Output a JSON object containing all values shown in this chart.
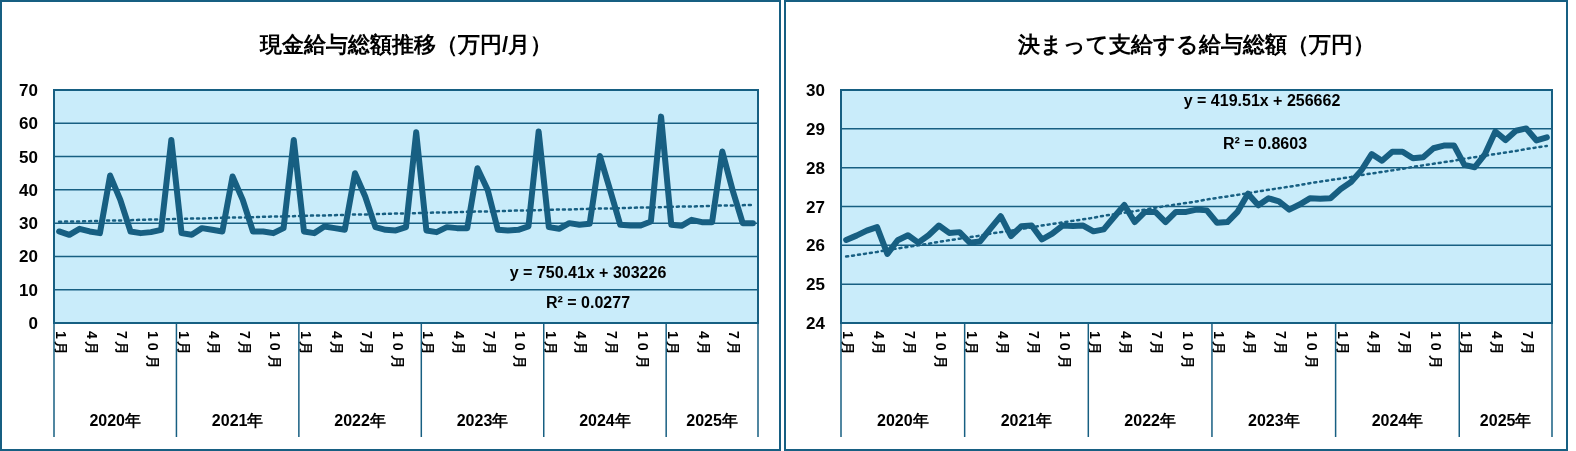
{
  "chart_data": [
    {
      "type": "line",
      "title": "現金給与総額推移（万円/月）",
      "categories": [
        "1月",
        null,
        null,
        "4月",
        null,
        null,
        "7月",
        null,
        null,
        "10月",
        null,
        null,
        "1月",
        null,
        null,
        "4月",
        null,
        null,
        "7月",
        null,
        null,
        "10月",
        null,
        null,
        "1月",
        null,
        null,
        "4月",
        null,
        null,
        "7月",
        null,
        null,
        "10月",
        null,
        null,
        "1月",
        null,
        null,
        "4月",
        null,
        null,
        "7月",
        null,
        null,
        "10月",
        null,
        null,
        "1月",
        null,
        null,
        "4月",
        null,
        null,
        "7月",
        null,
        null,
        "10月",
        null,
        null,
        "1月",
        null,
        null,
        "4月",
        null,
        null,
        "7月",
        null,
        null
      ],
      "ylim": [
        0,
        70
      ],
      "yticks": [
        0,
        10,
        20,
        30,
        40,
        50,
        60,
        70
      ],
      "grid": "y",
      "annotations": [
        "y = 750.41x + 303226",
        "R² = 0.0277",
        "2020年",
        "2021年",
        "2022年",
        "2023年",
        "2024年",
        "2025年"
      ],
      "series": [
        {
          "color": "#175f82",
          "line_style": "solid",
          "values": [
            27.5,
            26.5,
            28.3,
            27.5,
            27,
            44.3,
            37,
            27.5,
            27,
            27.3,
            28,
            55,
            27,
            26.5,
            28.5,
            28,
            27.5,
            44,
            37,
            27.5,
            27.5,
            27,
            28.5,
            55,
            27.5,
            27,
            29,
            28.5,
            28,
            45,
            38,
            28.8,
            28,
            27.8,
            28.8,
            57.3,
            27.8,
            27.3,
            28.8,
            28.5,
            28.5,
            46.5,
            40,
            28,
            27.8,
            28,
            29,
            57.5,
            28.8,
            28.3,
            30,
            29.5,
            29.8,
            50.2,
            40,
            29.5,
            29.3,
            29.3,
            30.5,
            62,
            29.5,
            29.2,
            31,
            30.3,
            30.3,
            51.5,
            40,
            30,
            30
          ]
        },
        {
          "type": "line",
          "color": "#175f82",
          "line_style": "dotted",
          "values": [
            30.4,
            30.5,
            30.5,
            30.6,
            30.7,
            30.8,
            30.8,
            30.9,
            31,
            31.1,
            31.1,
            31.2,
            31.3,
            31.4,
            31.4,
            31.5,
            31.6,
            31.7,
            31.7,
            31.8,
            31.9,
            32,
            32,
            32.1,
            32.2,
            32.3,
            32.3,
            32.4,
            32.5,
            32.6,
            32.6,
            32.7,
            32.8,
            32.9,
            32.9,
            33,
            33.1,
            33.2,
            33.2,
            33.3,
            33.4,
            33.5,
            33.5,
            33.6,
            33.7,
            33.8,
            33.8,
            33.9,
            34,
            34.1,
            34.1,
            34.2,
            34.3,
            34.4,
            34.4,
            34.5,
            34.6,
            34.7,
            34.7,
            34.8,
            34.9,
            35,
            35,
            35.1,
            35.2,
            35.3,
            35.3,
            35.4,
            35.5
          ]
        }
      ]
    },
    {
      "type": "line",
      "title": "決まって支給する給与総額（万円）",
      "categories": [
        "1月",
        null,
        null,
        "4月",
        null,
        null,
        "7月",
        null,
        null,
        "10月",
        null,
        null,
        "1月",
        null,
        null,
        "4月",
        null,
        null,
        "7月",
        null,
        null,
        "10月",
        null,
        null,
        "1月",
        null,
        null,
        "4月",
        null,
        null,
        "7月",
        null,
        null,
        "10月",
        null,
        null,
        "1月",
        null,
        null,
        "4月",
        null,
        null,
        "7月",
        null,
        null,
        "10月",
        null,
        null,
        "1月",
        null,
        null,
        "4月",
        null,
        null,
        "7月",
        null,
        null,
        "10月",
        null,
        null,
        "1月",
        null,
        null,
        "4月",
        null,
        null,
        "7月",
        null,
        null
      ],
      "ylim": [
        24,
        30
      ],
      "yticks": [
        24,
        25,
        26,
        27,
        28,
        29,
        30
      ],
      "grid": "y",
      "annotations": [
        "y = 419.51x + 256662",
        "R² = 0.8603",
        "2020年",
        "2021年",
        "2022年",
        "2023年",
        "2024年",
        "2025年"
      ],
      "series": [
        {
          "color": "#175f82",
          "line_style": "solid",
          "values": [
            26.14,
            26.25,
            26.38,
            26.47,
            25.78,
            26.13,
            26.26,
            26.07,
            26.26,
            26.51,
            26.32,
            26.34,
            26.07,
            26.1,
            26.43,
            26.75,
            26.24,
            26.49,
            26.51,
            26.15,
            26.3,
            26.51,
            26.5,
            26.51,
            26.36,
            26.41,
            26.73,
            27.04,
            26.6,
            26.86,
            26.86,
            26.6,
            26.86,
            26.86,
            26.92,
            26.9,
            26.58,
            26.6,
            26.87,
            27.33,
            27.03,
            27.21,
            27.13,
            26.92,
            27.05,
            27.21,
            27.2,
            27.21,
            27.45,
            27.63,
            27.93,
            28.35,
            28.18,
            28.41,
            28.41,
            28.24,
            28.27,
            28.5,
            28.57,
            28.57,
            28.07,
            28.01,
            28.35,
            28.93,
            28.71,
            28.95,
            29.01,
            28.7,
            28.78
          ]
        },
        {
          "type": "line",
          "color": "#175f82",
          "line_style": "dotted",
          "values": [
            25.71,
            25.75,
            25.79,
            25.83,
            25.88,
            25.92,
            25.96,
            26.0,
            26.04,
            26.09,
            26.13,
            26.17,
            26.21,
            26.25,
            26.3,
            26.34,
            26.38,
            26.42,
            26.46,
            26.51,
            26.55,
            26.59,
            26.63,
            26.67,
            26.71,
            26.76,
            26.8,
            26.84,
            26.88,
            26.92,
            26.97,
            27.01,
            27.05,
            27.09,
            27.13,
            27.18,
            27.22,
            27.26,
            27.3,
            27.34,
            27.39,
            27.43,
            27.47,
            27.51,
            27.55,
            27.6,
            27.64,
            27.68,
            27.72,
            27.76,
            27.81,
            27.85,
            27.89,
            27.93,
            27.97,
            28.02,
            28.06,
            28.1,
            28.14,
            28.18,
            28.23,
            28.27,
            28.31,
            28.35,
            28.39,
            28.43,
            28.48,
            28.52,
            28.56
          ]
        }
      ]
    }
  ]
}
